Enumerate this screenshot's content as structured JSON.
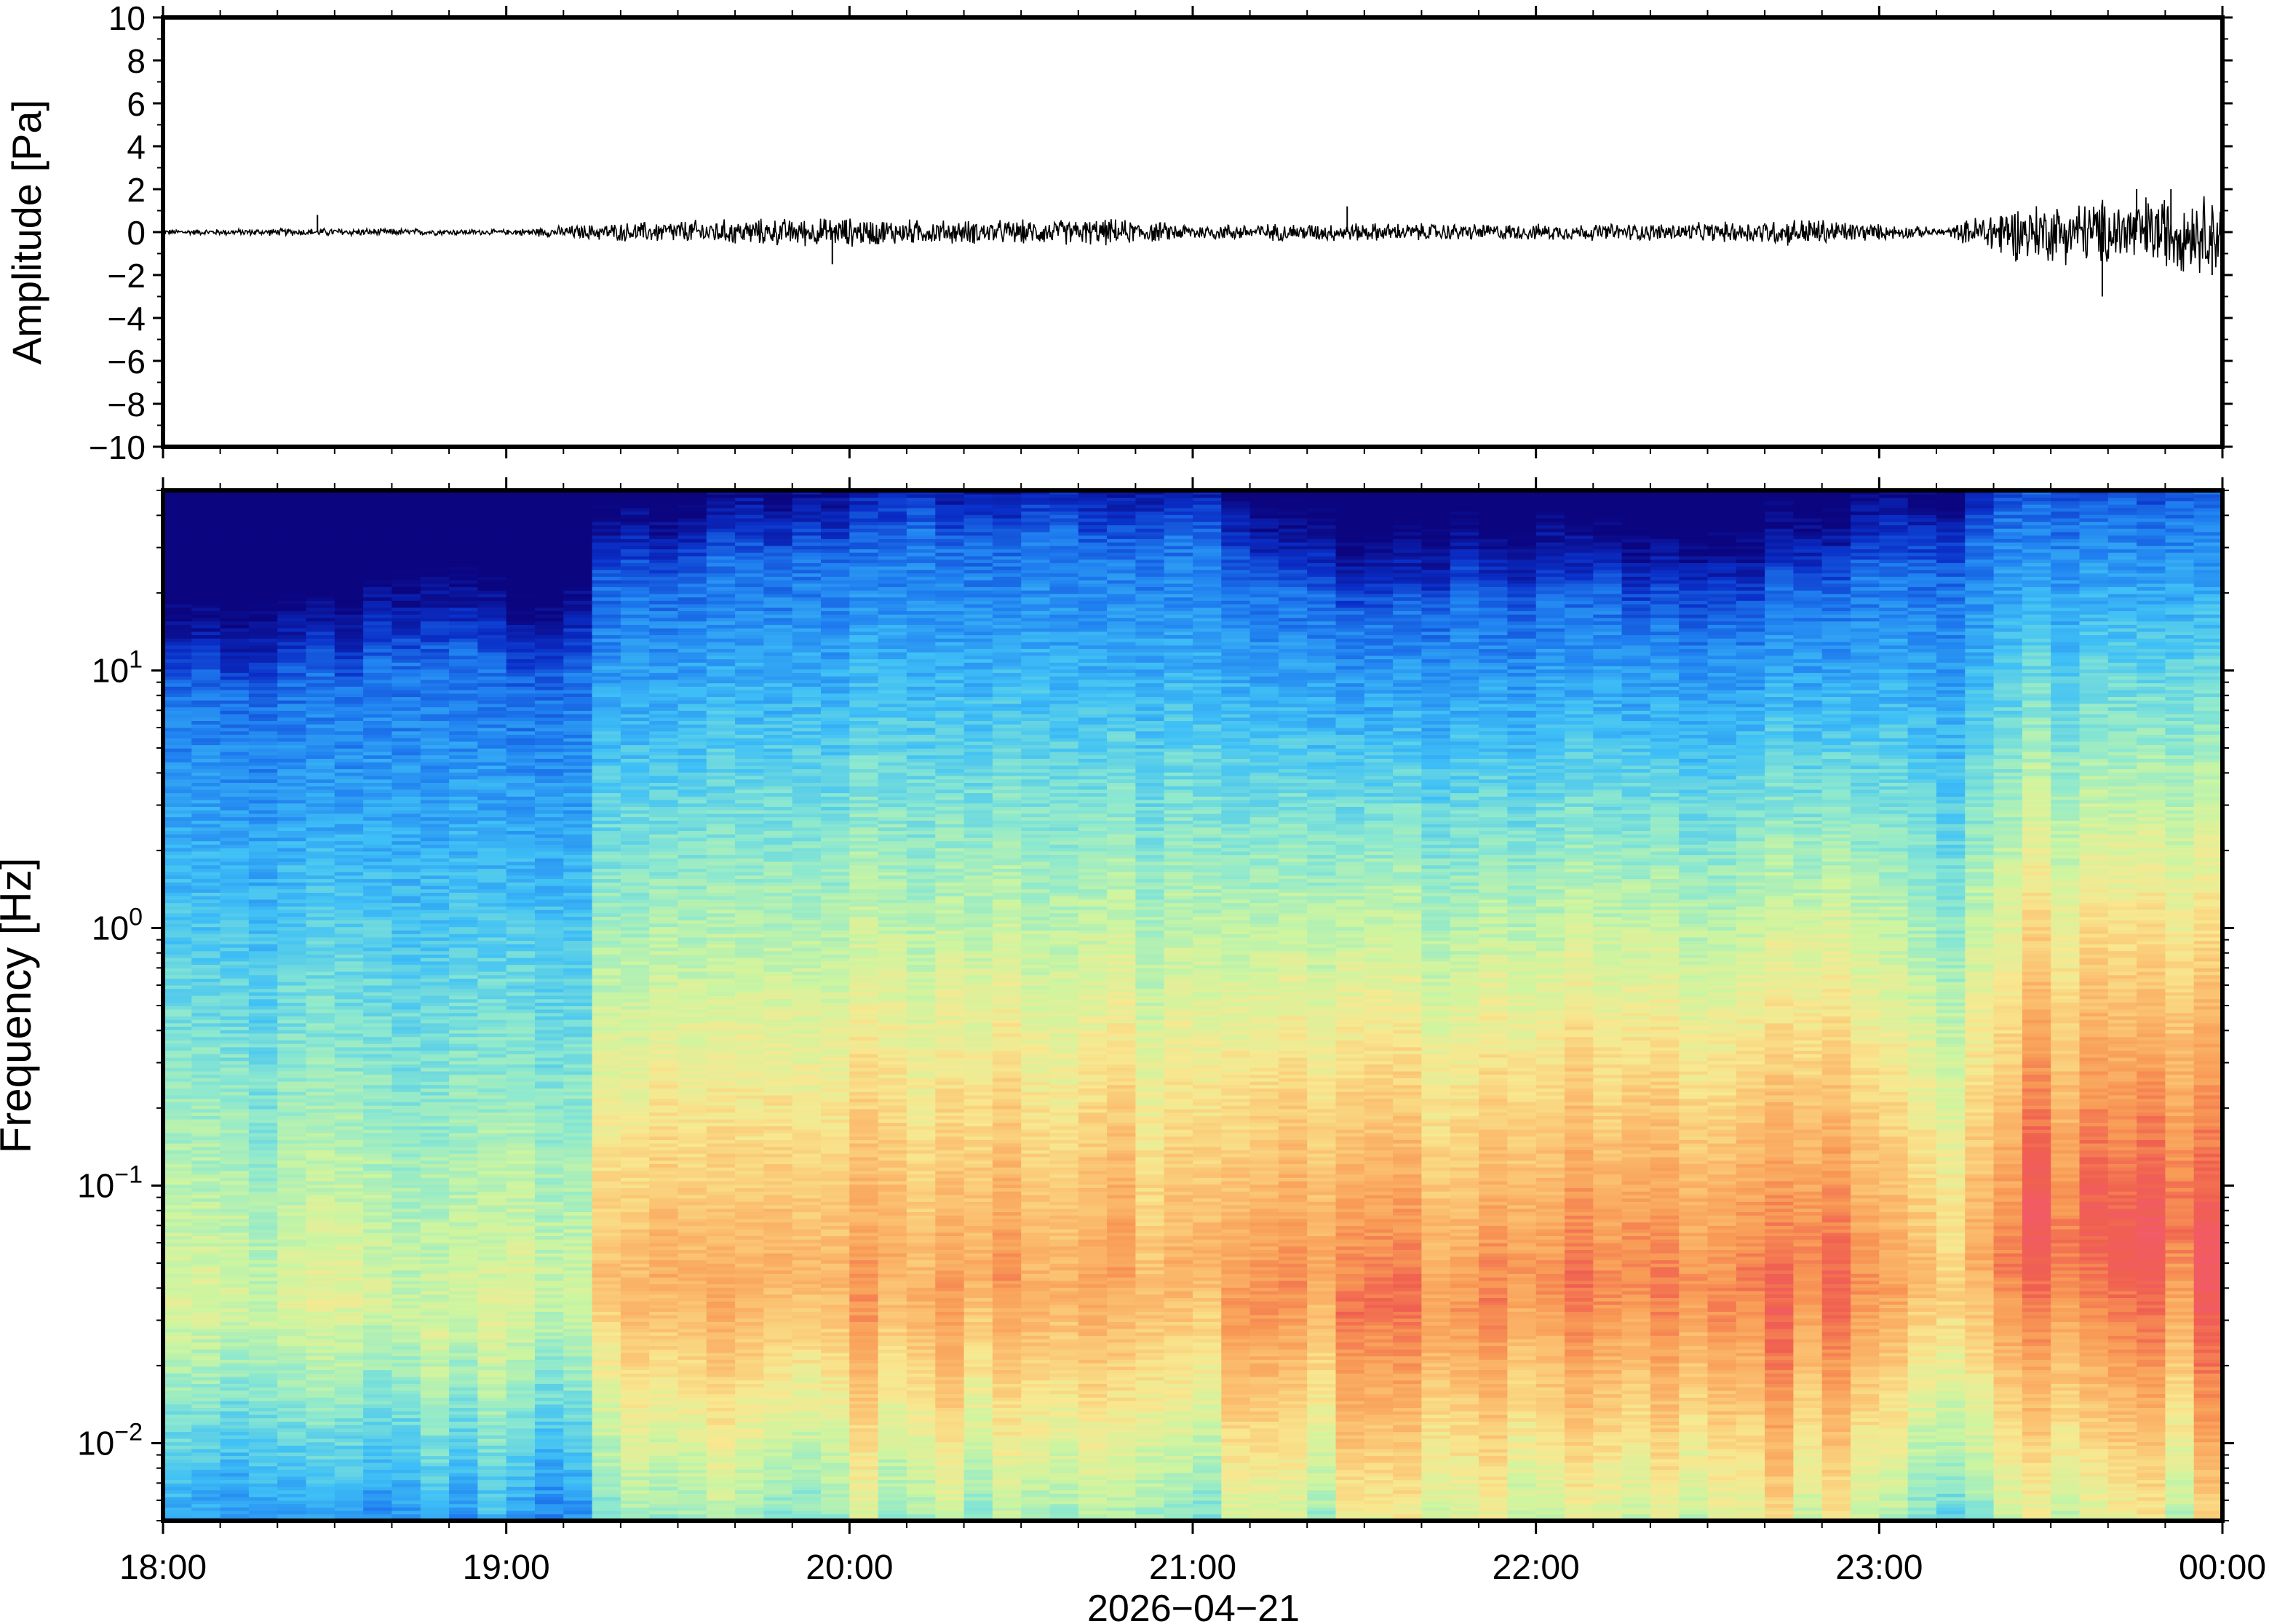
{
  "chart_data": [
    {
      "type": "line",
      "ylabel": "Amplitude [Pa]",
      "ylim": [
        -10,
        10
      ],
      "yticks": [
        10,
        8,
        6,
        4,
        2,
        0,
        -2,
        -4,
        -6,
        -8,
        -10
      ],
      "ytick_labels": [
        "10",
        "8",
        "6",
        "4",
        "2",
        "0",
        "−2",
        "−4",
        "−6",
        "−8",
        "−10"
      ],
      "x_time_range": [
        "2026-04-21 18:00",
        "2026-04-22 00:00"
      ],
      "series": [
        {
          "color": "#000000",
          "envelope_time_hours": [
            18.0,
            18.5,
            19.0,
            19.25,
            19.5,
            19.75,
            20.0,
            20.25,
            20.5,
            20.75,
            21.0,
            21.5,
            22.0,
            22.5,
            22.8,
            23.0,
            23.2,
            23.35,
            23.6,
            23.8,
            24.0
          ],
          "envelope_amplitude_pa": [
            0.1,
            0.15,
            0.1,
            0.3,
            0.45,
            0.5,
            0.55,
            0.45,
            0.45,
            0.5,
            0.3,
            0.35,
            0.3,
            0.35,
            0.55,
            0.3,
            0.15,
            1.0,
            1.2,
            1.4,
            1.5
          ],
          "spikes": [
            {
              "time_hours": 18.45,
              "value": 0.8
            },
            {
              "time_hours": 19.95,
              "value": -1.5
            },
            {
              "time_hours": 21.45,
              "value": 1.2
            },
            {
              "time_hours": 23.65,
              "value": -3.0
            },
            {
              "time_hours": 23.75,
              "value": 2.0
            },
            {
              "time_hours": 23.85,
              "value": 2.0
            },
            {
              "time_hours": 23.97,
              "value": -2.0
            }
          ]
        }
      ]
    },
    {
      "type": "heatmap",
      "ylabel": "Frequency [Hz]",
      "xlabel": "2026−04−21",
      "yscale": "log",
      "ylim": [
        0.005,
        50
      ],
      "x_ticks": [
        "18:00",
        "19:00",
        "20:00",
        "21:00",
        "22:00",
        "23:00",
        "00:00"
      ],
      "y_ticks": [
        {
          "base": "10",
          "exp": "1",
          "value": 10
        },
        {
          "base": "10",
          "exp": "0",
          "value": 1
        },
        {
          "base": "10",
          "exp": "−1",
          "value": 0.1
        },
        {
          "base": "10",
          "exp": "−2",
          "value": 0.01
        }
      ],
      "colormap": [
        "#0b0580",
        "#0a2fc8",
        "#1f7ff0",
        "#3fc0f6",
        "#8be8d0",
        "#cdf5a0",
        "#f8e890",
        "#fbc070",
        "#f89a55",
        "#f06050",
        "#f25a6a"
      ],
      "column_minutes": 5,
      "column_profile": {
        "description": "relative spectral level per time column (hours) and frequency",
        "time_hours": [
          18.0,
          18.5,
          19.0,
          19.2,
          19.25,
          20.0,
          20.5,
          21.0,
          21.5,
          22.0,
          22.5,
          23.0,
          23.2,
          23.35,
          24.0
        ],
        "high_freq_cutoff_hz": [
          8,
          10,
          10,
          7,
          20,
          30,
          35,
          30,
          15,
          18,
          15,
          25,
          20,
          40,
          45
        ],
        "peak_band_hz": [
          0.03,
          0.03,
          0.03,
          0.03,
          0.04,
          0.04,
          0.04,
          0.04,
          0.04,
          0.04,
          0.04,
          0.04,
          0.04,
          0.06,
          0.06
        ],
        "peak_level": [
          0.55,
          0.55,
          0.55,
          0.5,
          0.75,
          0.8,
          0.8,
          0.75,
          0.85,
          0.85,
          0.88,
          0.9,
          0.7,
          0.92,
          0.95
        ]
      }
    }
  ]
}
